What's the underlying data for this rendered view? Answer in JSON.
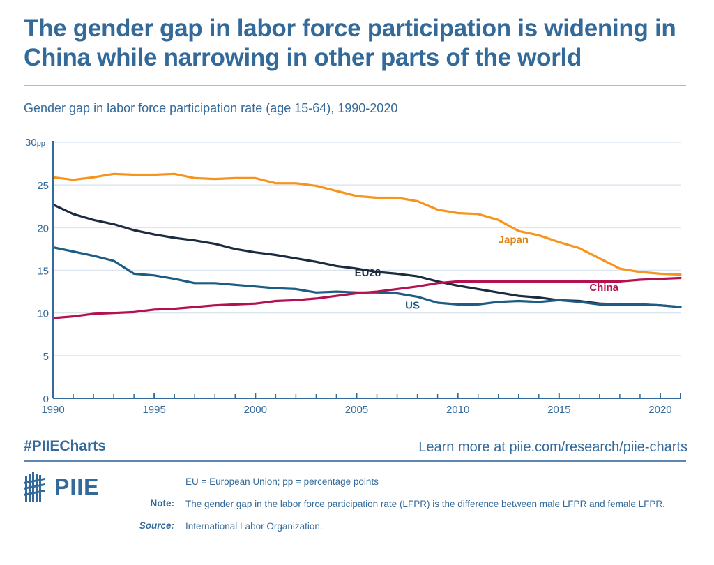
{
  "title": "The gender gap in labor force participation is widening in China while narrowing in other parts of the world",
  "subtitle": "Gender gap in labor force participation rate (age 15-64), 1990-2020",
  "footer": {
    "hashtag": "#PIIECharts",
    "learn_more": "Learn more at piie.com/research/piie-charts",
    "logo_text": "PIIE",
    "abbrev": "EU = European Union; pp = percentage points",
    "note_label": "Note:",
    "note": "The gender gap in the labor force participation rate (LFPR) is the difference between male LFPR and female LFPR.",
    "source_label": "Source:",
    "source": "International Labor Organization."
  },
  "chart_data": {
    "type": "line",
    "title": "Gender gap in labor force participation rate (age 15-64), 1990-2020",
    "xlabel": "",
    "ylabel": "pp",
    "ylim": [
      0,
      30
    ],
    "xlim": [
      1990,
      2021
    ],
    "grid": true,
    "yticks": [
      0,
      5,
      10,
      15,
      20,
      25,
      30
    ],
    "ytick_labels": [
      "0",
      "5",
      "10",
      "15",
      "20",
      "25",
      "30pp"
    ],
    "xticks_major": [
      1990,
      1995,
      2000,
      2005,
      2010,
      2015,
      2020
    ],
    "xtick_labels": [
      "1990",
      "1995",
      "2000",
      "2005",
      "2010",
      "2015",
      "2020"
    ],
    "x": [
      1990,
      1991,
      1992,
      1993,
      1994,
      1995,
      1996,
      1997,
      1998,
      1999,
      2000,
      2001,
      2002,
      2003,
      2004,
      2005,
      2006,
      2007,
      2008,
      2009,
      2010,
      2011,
      2012,
      2013,
      2014,
      2015,
      2016,
      2017,
      2018,
      2019,
      2020,
      2021
    ],
    "series": [
      {
        "name": "Japan",
        "color": "#f7941d",
        "label_color": "#e0841a",
        "label_at": [
          2012,
          18.2
        ],
        "values": [
          25.9,
          25.6,
          25.9,
          26.3,
          26.2,
          26.2,
          26.3,
          25.8,
          25.7,
          25.8,
          25.8,
          25.2,
          25.2,
          24.9,
          24.3,
          23.7,
          23.5,
          23.5,
          23.1,
          22.1,
          21.7,
          21.6,
          20.9,
          19.6,
          19.1,
          18.3,
          17.6,
          16.4,
          15.2,
          14.8,
          14.6,
          14.5
        ]
      },
      {
        "name": "EU28",
        "color": "#1c2c3f",
        "label_color": "#1c2c3f",
        "label_at": [
          2004.9,
          14.3
        ],
        "values": [
          22.7,
          21.6,
          20.9,
          20.4,
          19.7,
          19.2,
          18.8,
          18.5,
          18.1,
          17.5,
          17.1,
          16.8,
          16.4,
          16.0,
          15.5,
          15.2,
          14.8,
          14.6,
          14.3,
          13.7,
          13.2,
          12.8,
          12.4,
          12.0,
          11.8,
          11.5,
          11.4,
          11.1,
          11.0,
          11.0,
          10.9,
          10.7
        ]
      },
      {
        "name": "US",
        "color": "#1d5c84",
        "label_color": "#1d5c84",
        "label_at": [
          2007.4,
          10.5
        ],
        "values": [
          17.7,
          17.2,
          16.7,
          16.1,
          14.6,
          14.4,
          14.0,
          13.5,
          13.5,
          13.3,
          13.1,
          12.9,
          12.8,
          12.4,
          12.5,
          12.4,
          12.4,
          12.3,
          11.9,
          11.2,
          11.0,
          11.0,
          11.3,
          11.4,
          11.3,
          11.5,
          11.3,
          11.0,
          11.0,
          11.0,
          10.9,
          10.7
        ]
      },
      {
        "name": "China",
        "color": "#b5104f",
        "label_color": "#b5104f",
        "label_at": [
          2016.5,
          12.6
        ],
        "values": [
          9.4,
          9.6,
          9.9,
          10.0,
          10.1,
          10.4,
          10.5,
          10.7,
          10.9,
          11.0,
          11.1,
          11.4,
          11.5,
          11.7,
          12.0,
          12.3,
          12.5,
          12.8,
          13.1,
          13.5,
          13.7,
          13.7,
          13.7,
          13.7,
          13.7,
          13.7,
          13.7,
          13.7,
          13.7,
          13.9,
          14.0,
          14.1
        ]
      }
    ]
  },
  "colors": {
    "brand": "#346a9a",
    "grid": "#dde6ef",
    "axis": "#346a9a"
  }
}
